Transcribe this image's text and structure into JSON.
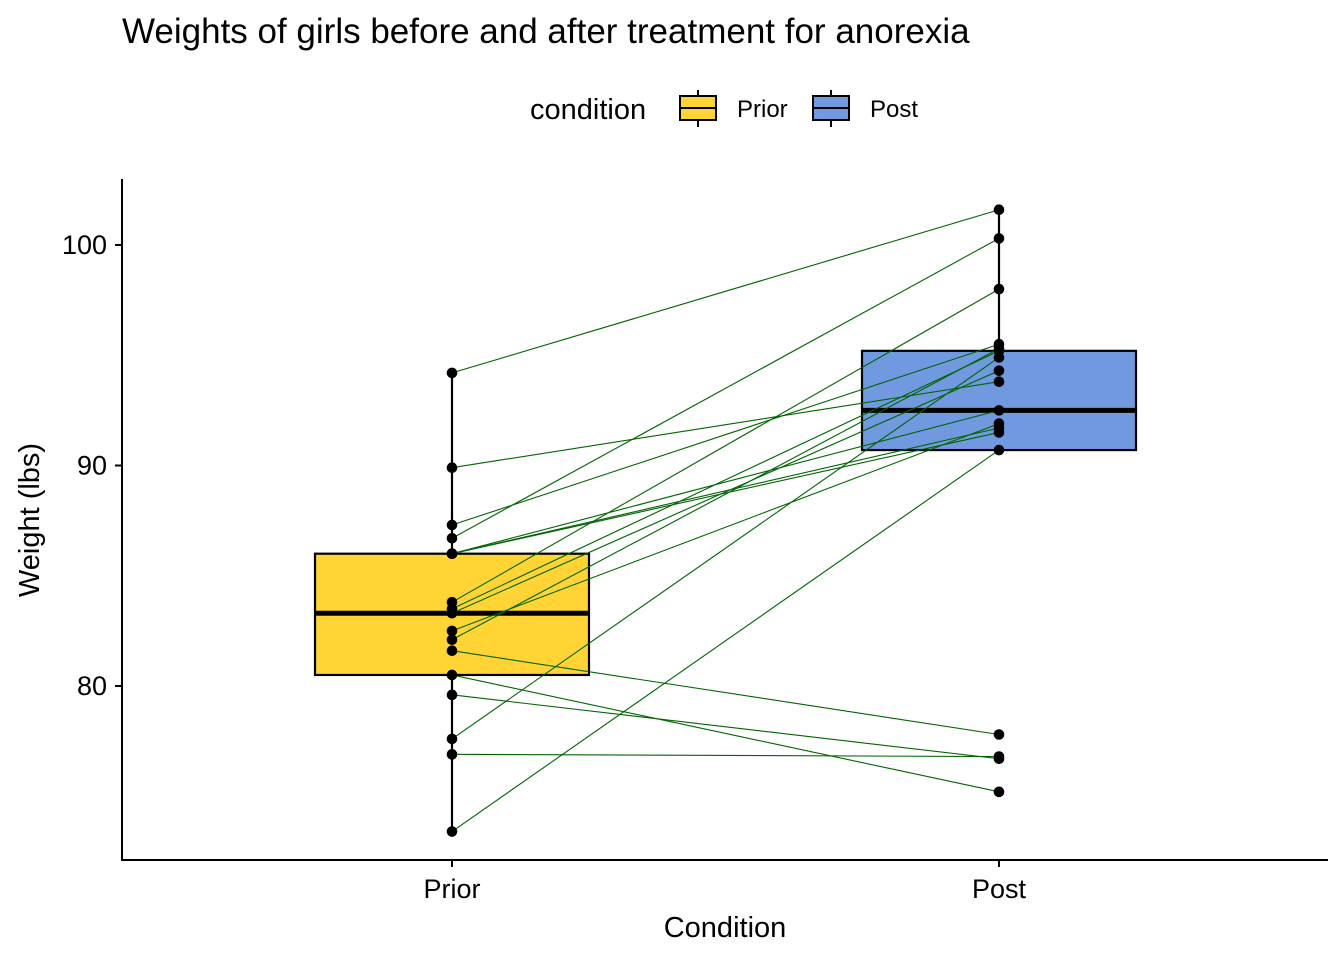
{
  "chart_data": {
    "type": "box",
    "title": "Weights of girls before and after treatment for anorexia",
    "xlabel": "Condition",
    "ylabel": "Weight (lbs)",
    "categories": [
      "Prior",
      "Post"
    ],
    "ylim": [
      72.5,
      103
    ],
    "yticks": [
      80,
      90,
      100
    ],
    "legend": {
      "title": "condition",
      "position": "top",
      "entries": [
        {
          "label": "Prior",
          "color": "#FFD434"
        },
        {
          "label": "Post",
          "color": "#7099E0"
        }
      ]
    },
    "boxes": [
      {
        "name": "Prior",
        "min": 73.4,
        "q1": 80.5,
        "median": 83.3,
        "q3": 86.0,
        "max": 94.2,
        "color": "#FFD434"
      },
      {
        "name": "Post",
        "min": 90.7,
        "q1": 90.7,
        "median": 92.5,
        "q3": 95.2,
        "max": 101.6,
        "color": "#7099E0"
      }
    ],
    "pairs": [
      [
        94.2,
        101.6
      ],
      [
        89.9,
        93.8
      ],
      [
        87.3,
        95.5
      ],
      [
        86.7,
        100.3
      ],
      [
        86.0,
        91.7
      ],
      [
        86.0,
        91.5
      ],
      [
        86.0,
        92.5
      ],
      [
        83.8,
        98.0
      ],
      [
        83.5,
        95.2
      ],
      [
        83.3,
        94.3
      ],
      [
        82.5,
        91.9
      ],
      [
        82.1,
        95.3
      ],
      [
        81.6,
        77.8
      ],
      [
        80.5,
        75.2
      ],
      [
        79.6,
        76.7
      ],
      [
        77.6,
        94.9
      ],
      [
        76.9,
        76.8
      ],
      [
        73.4,
        90.7
      ]
    ],
    "line_color": "#006400",
    "point_color": "#000000"
  }
}
